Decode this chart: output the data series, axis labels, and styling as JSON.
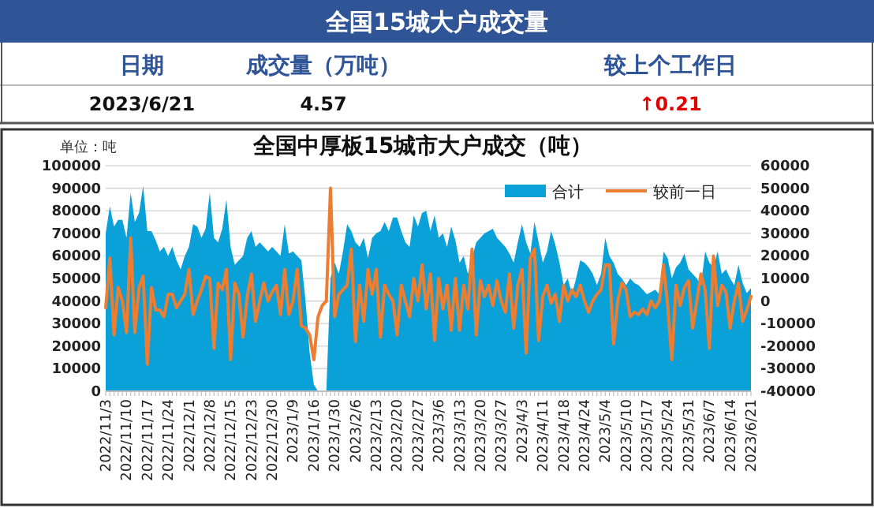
{
  "chart_data": [
    {
      "type": "other",
      "title": "全国15城大户成交量",
      "annotations": [
        "日期",
        "成交量（万吨）",
        "较上个工作日",
        "2023/6/21",
        "4.57",
        "↑0.21"
      ]
    },
    {
      "type": "area",
      "title": "全国中厚板15城市大户成交（吨）",
      "ylabel": "单位：吨",
      "grid": "y",
      "legend": "top right",
      "categories": [
        "2022/11/3",
        null,
        null,
        null,
        null,
        "2022/11/10",
        null,
        null,
        null,
        null,
        "2022/11/17",
        null,
        null,
        null,
        null,
        "2022/11/24",
        null,
        null,
        null,
        null,
        "2022/12/1",
        null,
        null,
        null,
        null,
        "2022/12/8",
        null,
        null,
        null,
        null,
        "2022/12/15",
        null,
        null,
        null,
        null,
        "2022/12/23",
        null,
        null,
        null,
        null,
        "2022/12/30",
        null,
        null,
        null,
        null,
        "2023/1/9",
        null,
        null,
        null,
        null,
        "2023/1/16",
        null,
        null,
        null,
        null,
        "2023/1/30",
        null,
        null,
        null,
        null,
        "2023/2/6",
        null,
        null,
        null,
        null,
        "2023/2/13",
        null,
        null,
        null,
        null,
        "2023/2/20",
        null,
        null,
        null,
        null,
        "2023/2/27",
        null,
        null,
        null,
        null,
        "2023/3/6",
        null,
        null,
        null,
        null,
        "2023/3/13",
        null,
        null,
        null,
        null,
        "2023/3/20",
        null,
        null,
        null,
        null,
        "2023/3/27",
        null,
        null,
        null,
        null,
        "2023/4/3",
        null,
        null,
        null,
        null,
        "2023/4/11",
        null,
        null,
        null,
        null,
        "2023/4/18",
        null,
        null,
        null,
        null,
        "2023/4/24",
        null,
        null,
        null,
        null,
        "2023/5/4",
        null,
        null,
        null,
        null,
        "2023/5/10",
        null,
        null,
        null,
        null,
        "2023/5/17",
        null,
        null,
        null,
        null,
        "2023/5/24",
        null,
        null,
        null,
        null,
        "2023/5/31",
        null,
        null,
        null,
        null,
        "2023/6/7",
        null,
        null,
        null,
        null,
        "2023/6/14",
        null,
        null,
        null,
        null,
        "2023/6/21"
      ],
      "ylim": [
        0,
        100000
      ],
      "yticks": [
        0,
        10000,
        20000,
        30000,
        40000,
        50000,
        60000,
        70000,
        80000,
        90000,
        100000
      ],
      "y2lim": [
        -40000,
        60000
      ],
      "y2ticks": [
        -40000,
        -30000,
        -20000,
        -10000,
        0,
        10000,
        20000,
        30000,
        40000,
        50000,
        60000
      ],
      "series": [
        {
          "name": "合计",
          "type": "area",
          "color": "#0aa0d8",
          "values": [
            70000,
            82000,
            73000,
            76000,
            76000,
            68000,
            88000,
            75000,
            79000,
            91000,
            71000,
            71000,
            67000,
            62000,
            64000,
            60000,
            64000,
            58000,
            54000,
            60000,
            64000,
            74000,
            73000,
            68000,
            72000,
            88000,
            68000,
            66000,
            72000,
            85000,
            64000,
            56000,
            58000,
            60000,
            68000,
            71000,
            64000,
            66000,
            64000,
            62000,
            64000,
            62000,
            60000,
            74000,
            61000,
            62000,
            60000,
            58000,
            40000,
            17000,
            3000,
            0,
            0,
            0,
            50000,
            57000,
            52000,
            62000,
            74000,
            71000,
            66000,
            64000,
            68000,
            59000,
            68000,
            70000,
            71000,
            75000,
            71000,
            77000,
            77000,
            71000,
            66000,
            64000,
            78000,
            73000,
            79000,
            80000,
            71000,
            78000,
            68000,
            70000,
            64000,
            73000,
            67000,
            57000,
            60000,
            52000,
            59000,
            66000,
            68000,
            70000,
            71000,
            72000,
            68000,
            66000,
            64000,
            61000,
            57000,
            66000,
            74000,
            66000,
            61000,
            75000,
            66000,
            57000,
            62000,
            71000,
            65000,
            57000,
            47000,
            50000,
            43000,
            50000,
            58000,
            57000,
            55000,
            52000,
            47000,
            52000,
            68000,
            60000,
            57000,
            52000,
            50000,
            47000,
            50000,
            48000,
            47000,
            45000,
            43000,
            44000,
            45000,
            43000,
            62000,
            59000,
            50000,
            55000,
            57000,
            61000,
            54000,
            52000,
            50000,
            47000,
            62000,
            57000,
            55000,
            62000,
            52000,
            54000,
            50000,
            47000,
            56000,
            48000,
            43500,
            45700
          ]
        },
        {
          "name": "较前一日",
          "type": "line",
          "axis": "y2",
          "color": "#ed7d31",
          "values": [
            -3000,
            19000,
            -15000,
            6000,
            0,
            -14000,
            28000,
            -14000,
            6000,
            11000,
            -28000,
            6000,
            -4000,
            -4000,
            -7000,
            3000,
            3000,
            -3000,
            0,
            3000,
            14000,
            -6000,
            0,
            5000,
            11000,
            10000,
            -21000,
            8000,
            5000,
            14000,
            -26000,
            8000,
            3000,
            -16000,
            2000,
            12000,
            -9000,
            0,
            8000,
            0,
            4000,
            7000,
            -6000,
            14000,
            -6000,
            0,
            14000,
            -11000,
            -12000,
            -15000,
            -26000,
            -7000,
            -2000,
            0,
            50000,
            -7000,
            3000,
            5000,
            7000,
            23000,
            -18000,
            7000,
            -9000,
            14000,
            3000,
            14000,
            -16000,
            7000,
            3000,
            0,
            -15000,
            7000,
            0,
            -7000,
            10000,
            0,
            16000,
            -3500,
            12000,
            -17500,
            10000,
            -3500,
            7000,
            -13000,
            10000,
            -13000,
            7000,
            -3500,
            23000,
            -15000,
            9000,
            2000,
            7000,
            -2000,
            9000,
            0,
            -5000,
            12000,
            -12000,
            7000,
            14000,
            -23000,
            19000,
            23000,
            -17500,
            2000,
            7000,
            -1000,
            3000,
            -9000,
            7000,
            0,
            5000,
            2000,
            7000,
            0,
            -5000,
            0,
            3000,
            5000,
            16000,
            16000,
            -19000,
            0,
            8000,
            5000,
            -7000,
            -5000,
            -6000,
            -3500,
            -6000,
            0,
            -3000,
            0,
            16000,
            -2000,
            -26000,
            7000,
            -2000,
            6000,
            9000,
            -12000,
            0,
            12000,
            5000,
            -21000,
            20000,
            -2000,
            7000,
            4000,
            -12000,
            0,
            8000,
            -9000,
            -4000,
            2100
          ]
        }
      ]
    }
  ]
}
